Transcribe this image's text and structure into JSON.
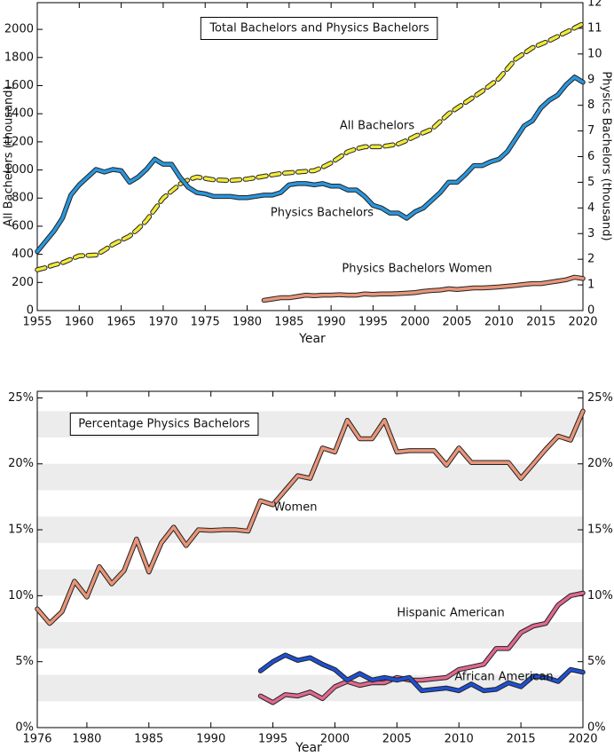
{
  "chart_data": [
    {
      "type": "line",
      "title": "Total Bachelors and Physics Bachelors",
      "x_label": "Year",
      "y_label": "All Bachelors (thousand)",
      "y2_label": "Physics Bachelors (thousand)",
      "x": [
        1955,
        1956,
        1957,
        1958,
        1959,
        1960,
        1961,
        1962,
        1963,
        1964,
        1965,
        1966,
        1967,
        1968,
        1969,
        1970,
        1971,
        1972,
        1973,
        1974,
        1975,
        1976,
        1977,
        1978,
        1979,
        1980,
        1981,
        1982,
        1983,
        1984,
        1985,
        1986,
        1987,
        1988,
        1989,
        1990,
        1991,
        1992,
        1993,
        1994,
        1995,
        1996,
        1997,
        1998,
        1999,
        2000,
        2001,
        2002,
        2003,
        2004,
        2005,
        2006,
        2007,
        2008,
        2009,
        2010,
        2011,
        2012,
        2013,
        2014,
        2015,
        2016,
        2017,
        2018,
        2019,
        2020
      ],
      "xlim": [
        1955,
        2020
      ],
      "xticks": [
        1955,
        1960,
        1965,
        1970,
        1975,
        1980,
        1985,
        1990,
        1995,
        2000,
        2005,
        2010,
        2015,
        2020
      ],
      "ylim": [
        0,
        2190
      ],
      "yticks": [
        0,
        200,
        400,
        600,
        800,
        1000,
        1200,
        1400,
        1600,
        1800,
        2000
      ],
      "y2lim": [
        0,
        12
      ],
      "y2ticks": [
        0,
        1,
        2,
        3,
        4,
        5,
        6,
        7,
        8,
        9,
        10,
        11,
        12
      ],
      "series": [
        {
          "name": "All Bachelors",
          "color": "#f0e93a",
          "line_style": "dashed",
          "axis": "y",
          "values": [
            290,
            305,
            325,
            340,
            365,
            390,
            392,
            395,
            430,
            470,
            500,
            530,
            580,
            640,
            720,
            800,
            850,
            900,
            930,
            950,
            940,
            930,
            928,
            925,
            930,
            935,
            945,
            955,
            965,
            975,
            980,
            985,
            990,
            995,
            1020,
            1050,
            1090,
            1130,
            1150,
            1165,
            1165,
            1165,
            1175,
            1185,
            1210,
            1240,
            1265,
            1290,
            1345,
            1400,
            1440,
            1480,
            1520,
            1560,
            1605,
            1650,
            1720,
            1790,
            1830,
            1870,
            1895,
            1920,
            1950,
            1980,
            2010,
            2040
          ]
        },
        {
          "name": "Physics Bachelors",
          "color": "#2a96dc",
          "line_style": "solid",
          "axis": "y2",
          "values": [
            2.3,
            2.7,
            3.1,
            3.6,
            4.5,
            4.9,
            5.2,
            5.5,
            5.4,
            5.5,
            5.45,
            5.0,
            5.2,
            5.5,
            5.9,
            5.7,
            5.7,
            5.2,
            4.8,
            4.6,
            4.55,
            4.45,
            4.45,
            4.45,
            4.4,
            4.4,
            4.45,
            4.5,
            4.5,
            4.6,
            4.9,
            4.95,
            4.95,
            4.9,
            4.95,
            4.85,
            4.85,
            4.7,
            4.7,
            4.45,
            4.1,
            4.0,
            3.8,
            3.8,
            3.6,
            3.85,
            4.0,
            4.3,
            4.6,
            5.0,
            5.0,
            5.3,
            5.65,
            5.65,
            5.8,
            5.9,
            6.2,
            6.7,
            7.2,
            7.4,
            7.9,
            8.2,
            8.4,
            8.8,
            9.1,
            8.9
          ]
        },
        {
          "name": "Physics Bachelors Women",
          "color": "#e8957a",
          "line_style": "solid",
          "axis": "y2",
          "values": [
            null,
            null,
            null,
            null,
            null,
            null,
            null,
            null,
            null,
            null,
            null,
            null,
            null,
            null,
            null,
            null,
            null,
            null,
            null,
            null,
            null,
            null,
            null,
            null,
            null,
            null,
            null,
            0.4,
            0.45,
            0.5,
            0.5,
            0.55,
            0.6,
            0.58,
            0.6,
            0.6,
            0.62,
            0.6,
            0.6,
            0.65,
            0.63,
            0.65,
            0.65,
            0.66,
            0.68,
            0.7,
            0.75,
            0.78,
            0.8,
            0.85,
            0.82,
            0.85,
            0.88,
            0.88,
            0.9,
            0.92,
            0.95,
            0.98,
            1.02,
            1.05,
            1.05,
            1.1,
            1.15,
            1.2,
            1.3,
            1.25
          ]
        }
      ]
    },
    {
      "type": "line",
      "title": "Percentage Physics Bachelors",
      "x_label": "Year",
      "x": [
        1976,
        1977,
        1978,
        1979,
        1980,
        1981,
        1982,
        1983,
        1984,
        1985,
        1986,
        1987,
        1988,
        1989,
        1990,
        1991,
        1992,
        1993,
        1994,
        1995,
        1996,
        1997,
        1998,
        1999,
        2000,
        2001,
        2002,
        2003,
        2004,
        2005,
        2006,
        2007,
        2008,
        2009,
        2010,
        2011,
        2012,
        2013,
        2014,
        2015,
        2016,
        2017,
        2018,
        2019,
        2020
      ],
      "xlim": [
        1976,
        2020
      ],
      "xticks": [
        1976,
        1980,
        1985,
        1990,
        1995,
        2000,
        2005,
        2010,
        2015,
        2020
      ],
      "ylim": [
        0,
        25.5
      ],
      "yticks": [
        {
          "value": 0,
          "label": "0%"
        },
        {
          "value": 5,
          "label": "5%"
        },
        {
          "value": 10,
          "label": "10%"
        },
        {
          "value": 15,
          "label": "15%"
        },
        {
          "value": 20,
          "label": "20%"
        },
        {
          "value": 25,
          "label": "25%"
        }
      ],
      "y2lim": [
        0,
        25.5
      ],
      "y2ticks": [
        {
          "value": 0,
          "label": "0%"
        },
        {
          "value": 5,
          "label": "5%"
        },
        {
          "value": 10,
          "label": "10%"
        },
        {
          "value": 15,
          "label": "15%"
        },
        {
          "value": 20,
          "label": "20%"
        },
        {
          "value": 25,
          "label": "25%"
        }
      ],
      "grid": "bands",
      "series": [
        {
          "name": "Women",
          "color": "#e8957a",
          "line_style": "solid",
          "axis": "y",
          "values": [
            9.0,
            7.9,
            8.8,
            11.1,
            9.9,
            12.2,
            10.9,
            11.9,
            14.3,
            11.8,
            14.0,
            15.2,
            13.8,
            15.0,
            14.95,
            15.0,
            15.0,
            14.9,
            17.2,
            16.9,
            18.0,
            19.1,
            18.9,
            21.2,
            20.9,
            23.3,
            21.9,
            21.9,
            23.3,
            20.9,
            21.0,
            21.0,
            21.0,
            19.9,
            21.2,
            20.1,
            20.1,
            20.1,
            20.1,
            18.9,
            20.0,
            21.1,
            22.1,
            21.8,
            24.0
          ]
        },
        {
          "name": "Hispanic American",
          "color": "#e0688f",
          "line_style": "solid",
          "axis": "y",
          "values": [
            null,
            null,
            null,
            null,
            null,
            null,
            null,
            null,
            null,
            null,
            null,
            null,
            null,
            null,
            null,
            null,
            null,
            null,
            2.4,
            1.9,
            2.5,
            2.4,
            2.7,
            2.2,
            3.1,
            3.5,
            3.2,
            3.4,
            3.4,
            3.8,
            3.6,
            3.6,
            3.7,
            3.8,
            4.4,
            4.6,
            4.8,
            6.0,
            6.0,
            7.2,
            7.7,
            7.9,
            9.3,
            10.0,
            10.2
          ]
        },
        {
          "name": "African American",
          "color": "#1f50d2",
          "line_style": "solid",
          "axis": "y",
          "values": [
            null,
            null,
            null,
            null,
            null,
            null,
            null,
            null,
            null,
            null,
            null,
            null,
            null,
            null,
            null,
            null,
            null,
            null,
            4.3,
            5.0,
            5.5,
            5.1,
            5.3,
            4.8,
            4.4,
            3.6,
            4.1,
            3.6,
            3.8,
            3.6,
            3.8,
            2.8,
            2.9,
            3.0,
            2.8,
            3.3,
            2.8,
            2.9,
            3.4,
            3.1,
            3.9,
            3.8,
            3.5,
            4.4,
            4.2
          ]
        }
      ]
    }
  ]
}
